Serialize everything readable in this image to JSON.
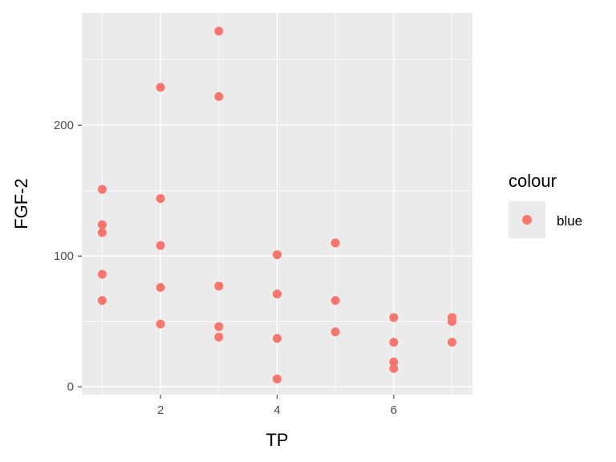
{
  "chart_data": {
    "type": "scatter",
    "xlabel": "TP",
    "ylabel": "FGF-2",
    "xlim": [
      0.65,
      7.35
    ],
    "ylim": [
      -6,
      286
    ],
    "x_ticks": [
      2,
      4,
      6
    ],
    "x_tick_labels": [
      "2",
      "4",
      "6"
    ],
    "y_ticks": [
      0,
      100,
      200
    ],
    "y_tick_labels": [
      "0",
      "100",
      "200"
    ],
    "grid": true,
    "legend": {
      "title": "colour",
      "position": "right",
      "entries": [
        {
          "label": "blue",
          "color": "#F8766D"
        }
      ]
    },
    "series": [
      {
        "name": "blue",
        "color": "#F8766D",
        "points": [
          {
            "x": 1,
            "y": 151
          },
          {
            "x": 1,
            "y": 124
          },
          {
            "x": 1,
            "y": 118
          },
          {
            "x": 1,
            "y": 86
          },
          {
            "x": 1,
            "y": 66
          },
          {
            "x": 2,
            "y": 229
          },
          {
            "x": 2,
            "y": 144
          },
          {
            "x": 2,
            "y": 108
          },
          {
            "x": 2,
            "y": 76
          },
          {
            "x": 2,
            "y": 48
          },
          {
            "x": 3,
            "y": 272
          },
          {
            "x": 3,
            "y": 222
          },
          {
            "x": 3,
            "y": 77
          },
          {
            "x": 3,
            "y": 46
          },
          {
            "x": 3,
            "y": 38
          },
          {
            "x": 4,
            "y": 101
          },
          {
            "x": 4,
            "y": 71
          },
          {
            "x": 4,
            "y": 37
          },
          {
            "x": 4,
            "y": 6
          },
          {
            "x": 5,
            "y": 110
          },
          {
            "x": 5,
            "y": 66
          },
          {
            "x": 5,
            "y": 42
          },
          {
            "x": 6,
            "y": 53
          },
          {
            "x": 6,
            "y": 34
          },
          {
            "x": 6,
            "y": 19
          },
          {
            "x": 6,
            "y": 14
          },
          {
            "x": 7,
            "y": 53
          },
          {
            "x": 7,
            "y": 50
          },
          {
            "x": 7,
            "y": 34
          }
        ]
      }
    ]
  }
}
